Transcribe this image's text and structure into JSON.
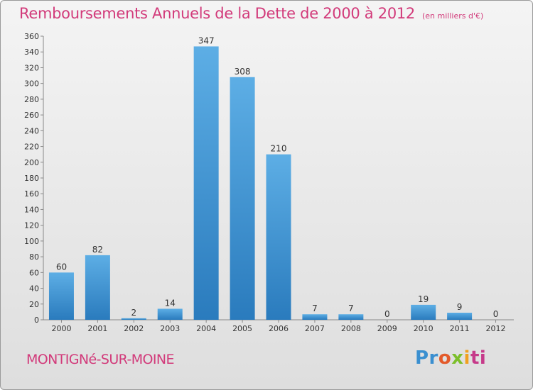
{
  "title": "Remboursements Annuels de la Dette de 2000 à 2012",
  "subtitle": "(en milliers d'€)",
  "commune": "MONTIGNé-SUR-MOINE",
  "logo": {
    "parts": [
      "Pr",
      "o",
      "x",
      "i",
      "ti"
    ]
  },
  "colors": {
    "bar_top": "#5daee5",
    "bar_bottom": "#2a7bbd",
    "accent": "#d23a7a"
  },
  "chart_data": {
    "type": "bar",
    "categories": [
      "2000",
      "2001",
      "2002",
      "2003",
      "2004",
      "2005",
      "2006",
      "2007",
      "2008",
      "2009",
      "2010",
      "2011",
      "2012"
    ],
    "values": [
      60,
      82,
      2,
      14,
      347,
      308,
      210,
      7,
      7,
      0,
      19,
      9,
      0
    ],
    "ylim": [
      0,
      360
    ],
    "yticks": [
      0,
      20,
      40,
      60,
      80,
      100,
      120,
      140,
      160,
      180,
      200,
      220,
      240,
      260,
      280,
      300,
      320,
      340,
      360
    ],
    "grid": false,
    "xlabel": "",
    "ylabel": ""
  }
}
